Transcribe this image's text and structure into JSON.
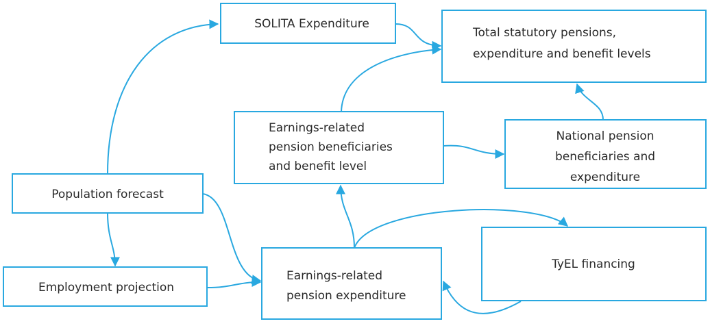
{
  "nodes": [
    {
      "label": [
        "SOLITA Expenditure"
      ]
    },
    {
      "label": [
        "Total statutory pensions,",
        "expenditure and benefit levels"
      ]
    },
    {
      "label": [
        "Earnings-related",
        "pension beneficiaries",
        "and benefit level"
      ]
    },
    {
      "label": [
        "National pension",
        "beneficiaries and",
        "expenditure"
      ]
    },
    {
      "label": [
        "Population forecast"
      ]
    },
    {
      "label": [
        "Employment projection"
      ]
    },
    {
      "label": [
        "Earnings-related",
        "pension expenditure"
      ]
    },
    {
      "label": [
        "TyEL financing"
      ]
    }
  ]
}
